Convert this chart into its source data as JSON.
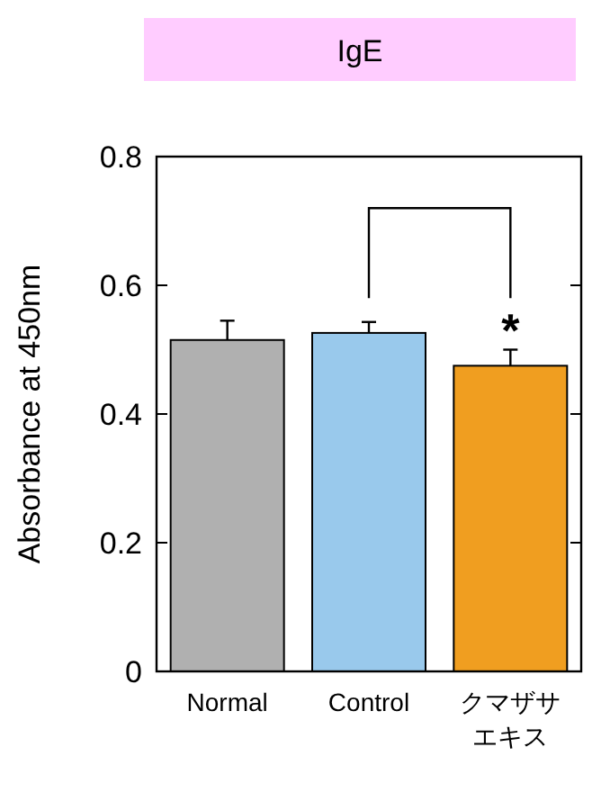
{
  "chart_data": {
    "type": "bar",
    "title": "IgE",
    "ylabel": "Absorbance at 450nm",
    "categories": [
      "Normal",
      "Control",
      "クマザサエキス"
    ],
    "values": [
      0.515,
      0.526,
      0.475
    ],
    "colors": [
      "#b0b0b0",
      "#99c9ec",
      "#f09e20"
    ],
    "errors": [
      [
        0.515,
        0.545
      ],
      [
        0.526,
        0.543
      ],
      [
        0.475,
        0.5
      ]
    ],
    "ylim": [
      0,
      0.8
    ],
    "yticks": [
      0,
      0.2,
      0.4,
      0.6,
      0.8
    ],
    "grid": false,
    "annotations": [
      "*"
    ]
  }
}
